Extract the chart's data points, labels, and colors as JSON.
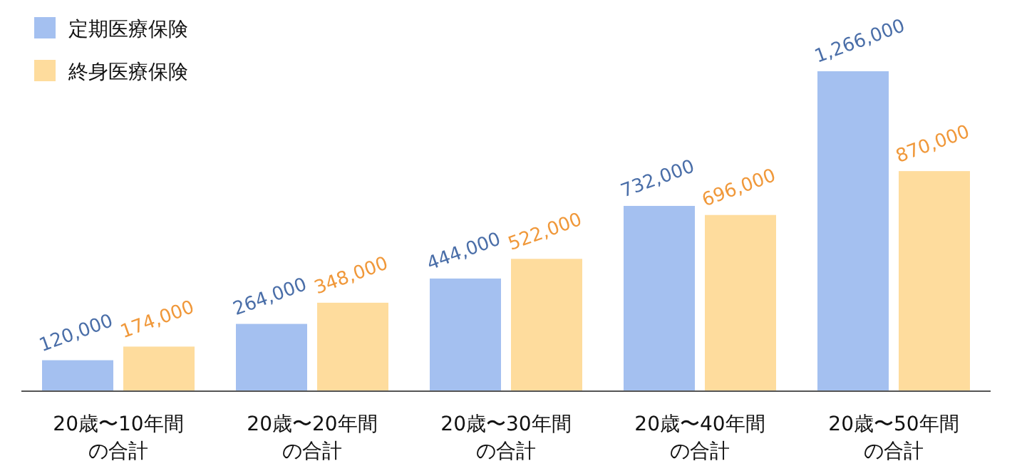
{
  "chart_data": {
    "type": "bar",
    "categories": [
      "20歳〜10年間の合計",
      "20歳〜20年間の合計",
      "20歳〜30年間の合計",
      "20歳〜40年間の合計",
      "20歳〜50年間の合計"
    ],
    "series": [
      {
        "name": "定期医療保険",
        "color": "#a4c0f0",
        "values": [
          120000,
          264000,
          444000,
          732000,
          1266000
        ],
        "value_labels": [
          "120,000",
          "264,000",
          "444,000",
          "732,000",
          "1,266,000"
        ]
      },
      {
        "name": "終身医療保険",
        "color": "#fedc9d",
        "values": [
          174000,
          348000,
          522000,
          696000,
          870000
        ],
        "value_labels": [
          "174,000",
          "348,000",
          "522,000",
          "696,000",
          "870,000"
        ]
      }
    ],
    "legend": "top left"
  }
}
